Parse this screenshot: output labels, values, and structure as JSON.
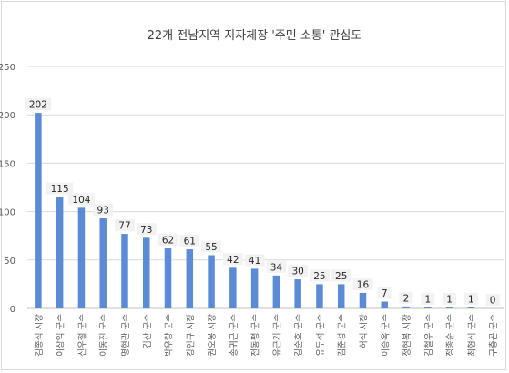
{
  "chart_data": {
    "type": "bar",
    "title": "22개 전남지역 지자체장 '주민 소통' 관심도",
    "xlabel": "",
    "ylabel": "",
    "ylim": [
      0,
      250
    ],
    "yticks": [
      0,
      50,
      100,
      150,
      200,
      250
    ],
    "grid": true,
    "legend": "none",
    "bar_color": "#5b8bd6",
    "categories": [
      "김종식 시장",
      "이상익 군수",
      "신우철 군수",
      "이동진 군수",
      "명현관 군수",
      "김산 군수",
      "박우량 군수",
      "강인규 시장",
      "권오봉 시장",
      "송귀근 군수",
      "전동평 군수",
      "유근기 군수",
      "김순호 군수",
      "유두석 군수",
      "김준성 군수",
      "허석 시장",
      "이승옥 군수",
      "정현복 시장",
      "김철우 군수",
      "정종순 군수",
      "최형식 군수",
      "구충곤 군수"
    ],
    "values": [
      202,
      115,
      104,
      93,
      77,
      73,
      62,
      61,
      55,
      42,
      41,
      34,
      30,
      25,
      25,
      16,
      7,
      2,
      1,
      1,
      1,
      0
    ]
  }
}
